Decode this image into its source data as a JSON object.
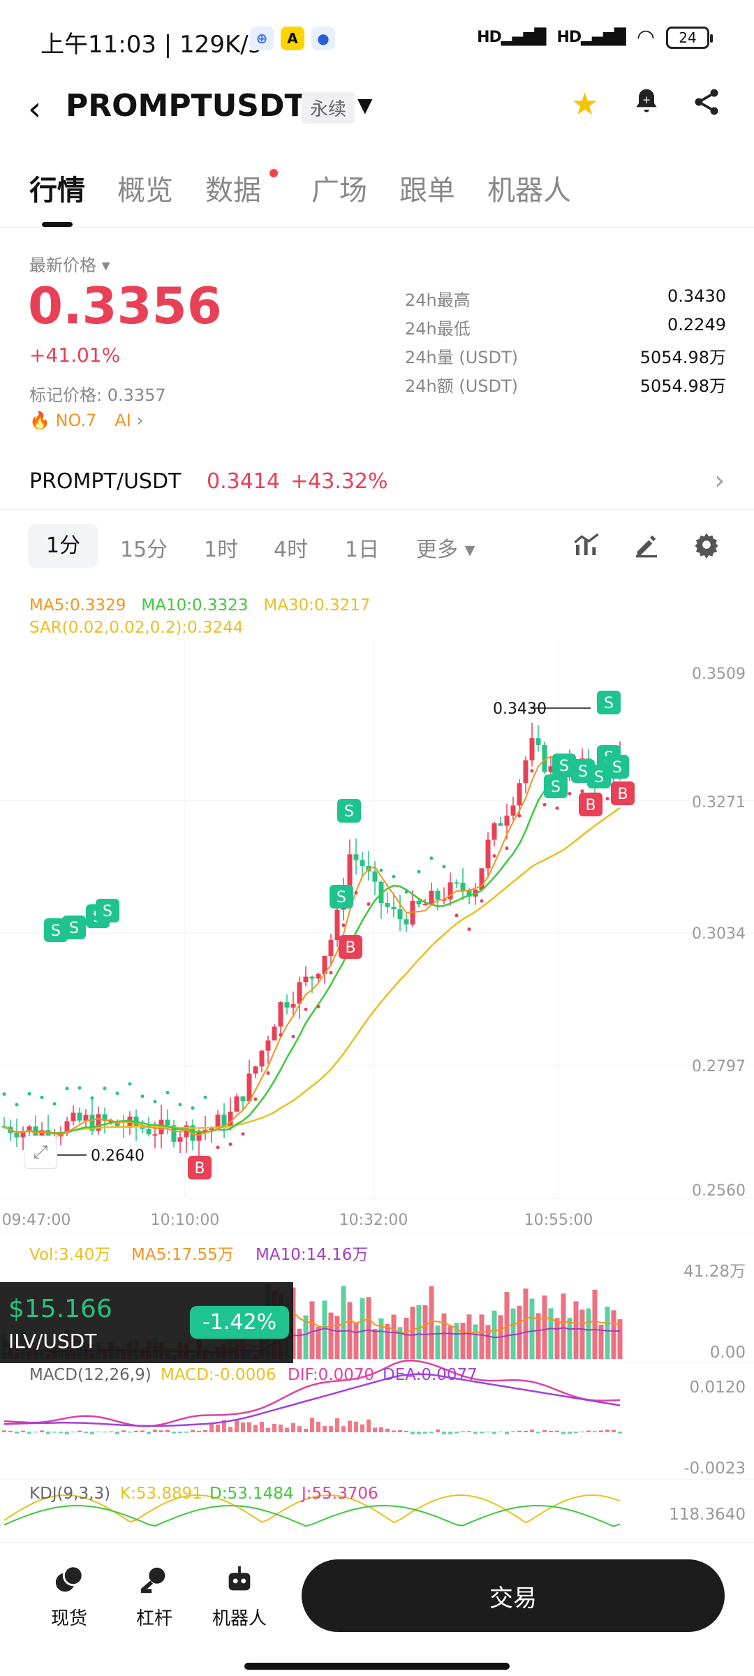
{
  "status_bar": {
    "time": "上午11:03 | 129K/s",
    "signal_1": "HD",
    "signal_2": "HD",
    "battery": "24"
  },
  "header": {
    "pair": "PROMPTUSDT",
    "tag": "永续"
  },
  "tabs": [
    "行情",
    "概览",
    "数据",
    "广场",
    "跟单",
    "机器人"
  ],
  "price": {
    "latest_label": "最新价格",
    "last": "0.3356",
    "change_pct": "+41.01%",
    "mark_price": "标记价格: 0.3357",
    "rank": "NO.7",
    "ai": "AI"
  },
  "stats": [
    {
      "k": "24h最高",
      "v": "0.3430"
    },
    {
      "k": "24h最低",
      "v": "0.2249"
    },
    {
      "k": "24h量 (USDT)",
      "v": "5054.98万"
    },
    {
      "k": "24h额 (USDT)",
      "v": "5054.98万"
    }
  ],
  "spot": {
    "pair": "PROMPT/USDT",
    "price": "0.3414",
    "pct": "+43.32%"
  },
  "intervals": [
    "1分",
    "15分",
    "1时",
    "4时",
    "1日",
    "更多"
  ],
  "chart_labels": {
    "ma5": "MA5:0.3329",
    "ma10": "MA10:0.3323",
    "ma30": "MA30:0.3217",
    "sar": "SAR(0.02,0.02,0.2):0.3244",
    "y_ticks": [
      "0.3509",
      "0.3271",
      "0.3034",
      "0.2797",
      "0.2560"
    ],
    "x_ticks": [
      "09:47:00",
      "10:10:00",
      "10:32:00",
      "10:55:00"
    ],
    "high_marker": "0.3430",
    "low_marker": "0.2640",
    "vol": "Vol:3.40万",
    "vol_ma5": "MA5:17.55万",
    "vol_ma10": "MA10:14.16万",
    "vol_max": "41.28万",
    "vol_min": "0.00",
    "macd_title": "MACD(12,26,9)",
    "macd": "MACD:-0.0006",
    "dif": "DIF:0.0070",
    "dea": "DEA:0.0077",
    "macd_max": "0.0120",
    "macd_min": "-0.0023",
    "kdj_title": "KDJ(9,3,3)",
    "k": "K:53.8891",
    "d": "D:53.1484",
    "j": "J:55.3706",
    "kdj_max": "118.3640",
    "s_badge": "S",
    "b_badge": "B"
  },
  "float_card": {
    "price": "$15.166",
    "pair": "ILV/USDT",
    "pct": "-1.42%"
  },
  "bottom_nav": {
    "spot": "现货",
    "leverage": "杠杆",
    "robot": "机器人",
    "trade": "交易"
  },
  "colors": {
    "up": "#e84057",
    "down": "#26c281",
    "ma5": "#f5921e",
    "ma10": "#3ec93e",
    "ma30": "#e8c020",
    "macd_dif": "#e040a0",
    "macd_dea": "#a040e0"
  }
}
